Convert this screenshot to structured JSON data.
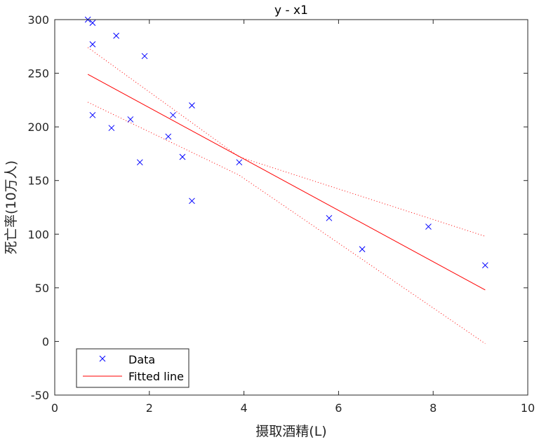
{
  "chart_data": {
    "type": "scatter",
    "title": "y - x1",
    "xlabel": "摄取酒精(L)",
    "ylabel": "死亡率(10万人)",
    "xlim": [
      0,
      10
    ],
    "ylim": [
      -50,
      300
    ],
    "xticks": [
      0,
      2,
      4,
      6,
      8,
      10
    ],
    "yticks": [
      -50,
      0,
      50,
      100,
      150,
      200,
      250,
      300
    ],
    "xtick_labels": [
      "0",
      "2",
      "4",
      "6",
      "8",
      "10"
    ],
    "ytick_labels": [
      "-50",
      "0",
      "50",
      "100",
      "150",
      "200",
      "250",
      "300"
    ],
    "grid": false,
    "legend_position": "bottom-left",
    "series": [
      {
        "name": "Data",
        "marker": "x",
        "color": "#0000ff",
        "points": [
          {
            "x": 0.7,
            "y": 300
          },
          {
            "x": 0.8,
            "y": 297
          },
          {
            "x": 0.8,
            "y": 277
          },
          {
            "x": 0.8,
            "y": 211
          },
          {
            "x": 1.2,
            "y": 199
          },
          {
            "x": 1.3,
            "y": 285
          },
          {
            "x": 1.6,
            "y": 207
          },
          {
            "x": 1.8,
            "y": 167
          },
          {
            "x": 1.9,
            "y": 266
          },
          {
            "x": 2.4,
            "y": 191
          },
          {
            "x": 2.5,
            "y": 211
          },
          {
            "x": 2.7,
            "y": 172
          },
          {
            "x": 2.9,
            "y": 131
          },
          {
            "x": 2.9,
            "y": 220
          },
          {
            "x": 3.9,
            "y": 167
          },
          {
            "x": 5.8,
            "y": 115
          },
          {
            "x": 6.5,
            "y": 86
          },
          {
            "x": 7.9,
            "y": 107
          },
          {
            "x": 9.1,
            "y": 71
          }
        ]
      },
      {
        "name": "Fitted line",
        "color": "#ff0000",
        "style": "solid",
        "points": [
          {
            "x": 0.7,
            "y": 249
          },
          {
            "x": 9.1,
            "y": 48
          }
        ]
      },
      {
        "color": "#ff0000",
        "style": "dotted",
        "points": [
          {
            "x": 0.7,
            "y": 274
          },
          {
            "x": 3.9,
            "y": 172
          },
          {
            "x": 9.1,
            "y": 98
          }
        ]
      },
      {
        "color": "#ff0000",
        "style": "dotted",
        "points": [
          {
            "x": 0.7,
            "y": 223
          },
          {
            "x": 3.9,
            "y": 155
          },
          {
            "x": 9.1,
            "y": -2
          }
        ]
      }
    ]
  }
}
